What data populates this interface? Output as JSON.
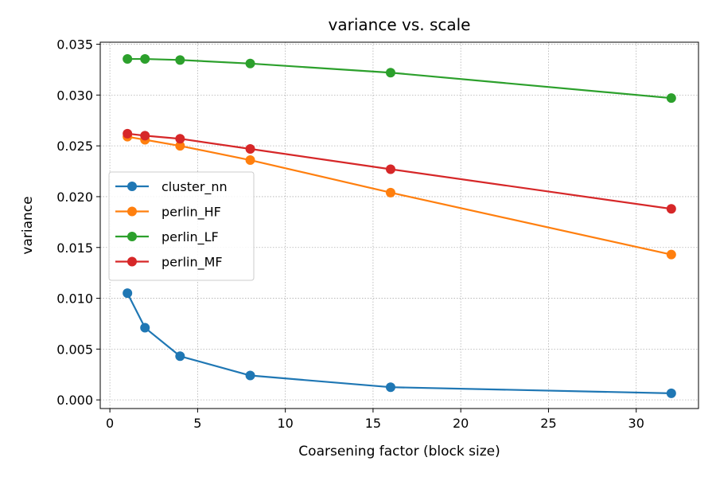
{
  "chart_data": {
    "type": "line",
    "title": "variance vs. scale",
    "xlabel": "Coarsening factor (block size)",
    "ylabel": "variance",
    "xlim": [
      -0.55,
      33.55
    ],
    "ylim": [
      -0.00085,
      0.0352
    ],
    "xticks": [
      0,
      5,
      10,
      15,
      20,
      25,
      30
    ],
    "xtick_labels": [
      "0",
      "5",
      "10",
      "15",
      "20",
      "25",
      "30"
    ],
    "yticks": [
      0.0,
      0.005,
      0.01,
      0.015,
      0.02,
      0.025,
      0.03,
      0.035
    ],
    "ytick_labels": [
      "0.000",
      "0.005",
      "0.010",
      "0.015",
      "0.020",
      "0.025",
      "0.030",
      "0.035"
    ],
    "grid": true,
    "legend_position": "center-left",
    "x": [
      1,
      2,
      4,
      8,
      16,
      32
    ],
    "series": [
      {
        "name": "cluster_nn",
        "color": "#1f77b4",
        "values": [
          0.0105,
          0.0071,
          0.0043,
          0.0024,
          0.00125,
          0.00065
        ]
      },
      {
        "name": "perlin_HF",
        "color": "#ff7f0e",
        "values": [
          0.0259,
          0.0256,
          0.025,
          0.0236,
          0.0204,
          0.0143
        ]
      },
      {
        "name": "perlin_LF",
        "color": "#2ca02c",
        "values": [
          0.03355,
          0.03355,
          0.03345,
          0.0331,
          0.0322,
          0.0297
        ]
      },
      {
        "name": "perlin_MF",
        "color": "#d62728",
        "values": [
          0.0262,
          0.026,
          0.0257,
          0.0247,
          0.0227,
          0.0188
        ]
      }
    ]
  }
}
